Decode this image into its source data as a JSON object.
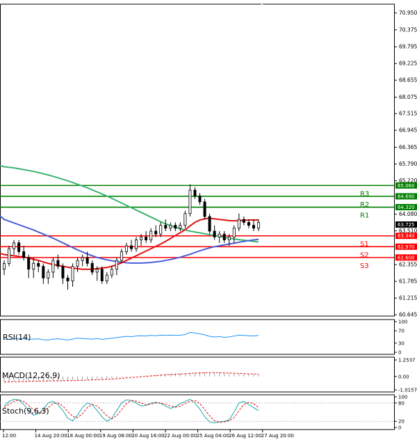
{
  "chart_data": {
    "type": "candlestick",
    "price_axis": {
      "ticks": [
        "70.950",
        "70.375",
        "69.795",
        "69.225",
        "68.655",
        "68.075",
        "67.515",
        "66.945",
        "66.365",
        "65.790",
        "65.220",
        "64.080",
        "63.510",
        "62.355",
        "61.785",
        "61.215",
        "60.645"
      ],
      "tick_values": [
        70.95,
        70.375,
        69.795,
        69.225,
        68.655,
        68.075,
        67.515,
        66.945,
        66.365,
        65.79,
        65.22,
        64.08,
        63.51,
        62.355,
        61.785,
        61.215,
        60.645
      ],
      "range": [
        60.6,
        71.25
      ]
    },
    "time_axis": {
      "labels": [
        "12:00",
        "14 Aug 20:00",
        "18 Aug 00:00",
        "19 Aug 08:00",
        "20 Aug 16:00",
        "22 Aug 00:00",
        "25 Aug 04:00",
        "26 Aug 12:00",
        "27 Aug 20:00"
      ]
    },
    "current_price": {
      "label": "63.725",
      "value": 63.725
    },
    "levels": [
      {
        "name": "R3",
        "label": "65.060",
        "value": 65.06,
        "color": "#008000"
      },
      {
        "name": "R2",
        "label": "64.690",
        "value": 64.69,
        "color": "#008000"
      },
      {
        "name": "R1",
        "label": "64.320",
        "value": 64.32,
        "color": "#008000"
      },
      {
        "name": "S1",
        "label": "63.340",
        "value": 63.34,
        "color": "#ff0000"
      },
      {
        "name": "S2",
        "label": "62.970",
        "value": 62.97,
        "color": "#ff0000"
      },
      {
        "name": "S3",
        "label": "62.600",
        "value": 62.6,
        "color": "#ff0000"
      }
    ],
    "candles": [
      {
        "o": 62.2,
        "h": 62.5,
        "l": 62.0,
        "c": 62.4
      },
      {
        "o": 62.4,
        "h": 63.0,
        "l": 62.3,
        "c": 62.9
      },
      {
        "o": 62.9,
        "h": 63.2,
        "l": 62.7,
        "c": 63.1
      },
      {
        "o": 63.1,
        "h": 63.2,
        "l": 62.7,
        "c": 62.8
      },
      {
        "o": 62.8,
        "h": 63.0,
        "l": 62.5,
        "c": 62.6
      },
      {
        "o": 62.6,
        "h": 62.7,
        "l": 61.9,
        "c": 62.2
      },
      {
        "o": 62.2,
        "h": 62.6,
        "l": 61.9,
        "c": 62.4
      },
      {
        "o": 62.4,
        "h": 62.5,
        "l": 62.1,
        "c": 62.3
      },
      {
        "o": 62.3,
        "h": 62.4,
        "l": 61.7,
        "c": 61.9
      },
      {
        "o": 61.9,
        "h": 62.2,
        "l": 61.7,
        "c": 62.1
      },
      {
        "o": 62.1,
        "h": 62.6,
        "l": 61.9,
        "c": 62.5
      },
      {
        "o": 62.5,
        "h": 62.7,
        "l": 62.2,
        "c": 62.3
      },
      {
        "o": 62.3,
        "h": 62.4,
        "l": 61.7,
        "c": 61.9
      },
      {
        "o": 61.9,
        "h": 62.0,
        "l": 61.5,
        "c": 61.8
      },
      {
        "o": 61.8,
        "h": 62.4,
        "l": 61.6,
        "c": 62.3
      },
      {
        "o": 62.3,
        "h": 62.6,
        "l": 62.1,
        "c": 62.5
      },
      {
        "o": 62.5,
        "h": 62.7,
        "l": 62.3,
        "c": 62.6
      },
      {
        "o": 62.6,
        "h": 62.8,
        "l": 62.3,
        "c": 62.4
      },
      {
        "o": 62.4,
        "h": 62.5,
        "l": 62.0,
        "c": 62.1
      },
      {
        "o": 62.1,
        "h": 62.3,
        "l": 61.8,
        "c": 62.2
      },
      {
        "o": 62.2,
        "h": 62.3,
        "l": 61.7,
        "c": 61.8
      },
      {
        "o": 61.8,
        "h": 62.1,
        "l": 61.7,
        "c": 62.0
      },
      {
        "o": 62.0,
        "h": 62.3,
        "l": 61.9,
        "c": 62.2
      },
      {
        "o": 62.2,
        "h": 62.6,
        "l": 62.0,
        "c": 62.5
      },
      {
        "o": 62.5,
        "h": 62.9,
        "l": 62.4,
        "c": 62.8
      },
      {
        "o": 62.8,
        "h": 63.1,
        "l": 62.7,
        "c": 63.0
      },
      {
        "o": 63.0,
        "h": 63.2,
        "l": 62.8,
        "c": 62.9
      },
      {
        "o": 62.9,
        "h": 63.3,
        "l": 62.8,
        "c": 63.2
      },
      {
        "o": 63.2,
        "h": 63.4,
        "l": 63.0,
        "c": 63.3
      },
      {
        "o": 63.3,
        "h": 63.5,
        "l": 63.1,
        "c": 63.2
      },
      {
        "o": 63.2,
        "h": 63.6,
        "l": 63.1,
        "c": 63.5
      },
      {
        "o": 63.5,
        "h": 63.7,
        "l": 63.3,
        "c": 63.4
      },
      {
        "o": 63.4,
        "h": 63.8,
        "l": 63.3,
        "c": 63.7
      },
      {
        "o": 63.7,
        "h": 63.9,
        "l": 63.5,
        "c": 63.6
      },
      {
        "o": 63.6,
        "h": 63.8,
        "l": 63.5,
        "c": 63.7
      },
      {
        "o": 63.7,
        "h": 63.8,
        "l": 63.5,
        "c": 63.6
      },
      {
        "o": 63.6,
        "h": 63.8,
        "l": 63.5,
        "c": 63.7
      },
      {
        "o": 63.7,
        "h": 64.2,
        "l": 63.6,
        "c": 64.1
      },
      {
        "o": 64.1,
        "h": 65.1,
        "l": 64.0,
        "c": 64.9
      },
      {
        "o": 64.9,
        "h": 65.0,
        "l": 64.6,
        "c": 64.7
      },
      {
        "o": 64.7,
        "h": 64.8,
        "l": 64.4,
        "c": 64.5
      },
      {
        "o": 64.5,
        "h": 64.6,
        "l": 63.9,
        "c": 64.0
      },
      {
        "o": 64.0,
        "h": 64.1,
        "l": 63.4,
        "c": 63.5
      },
      {
        "o": 63.5,
        "h": 63.7,
        "l": 63.2,
        "c": 63.3
      },
      {
        "o": 63.3,
        "h": 63.5,
        "l": 63.1,
        "c": 63.4
      },
      {
        "o": 63.4,
        "h": 63.5,
        "l": 63.1,
        "c": 63.2
      },
      {
        "o": 63.2,
        "h": 63.4,
        "l": 63.0,
        "c": 63.3
      },
      {
        "o": 63.3,
        "h": 63.7,
        "l": 63.1,
        "c": 63.6
      },
      {
        "o": 63.6,
        "h": 64.1,
        "l": 63.5,
        "c": 63.9
      },
      {
        "o": 63.9,
        "h": 64.0,
        "l": 63.7,
        "c": 63.8
      },
      {
        "o": 63.8,
        "h": 63.9,
        "l": 63.6,
        "c": 63.7
      },
      {
        "o": 63.7,
        "h": 63.9,
        "l": 63.5,
        "c": 63.6
      },
      {
        "o": 63.6,
        "h": 63.9,
        "l": 63.5,
        "c": 63.8
      }
    ],
    "ma_red": [
      62.7,
      62.68,
      62.66,
      62.64,
      62.62,
      62.58,
      62.54,
      62.5,
      62.45,
      62.4,
      62.36,
      62.33,
      62.3,
      62.27,
      62.24,
      62.22,
      62.2,
      62.2,
      62.2,
      62.22,
      62.24,
      62.26,
      62.3,
      62.35,
      62.42,
      62.5,
      62.58,
      62.66,
      62.74,
      62.82,
      62.9,
      62.98,
      63.06,
      63.15,
      63.25,
      63.35,
      63.45,
      63.55,
      63.68,
      63.8,
      63.88,
      63.92,
      63.94,
      63.92,
      63.9,
      63.88,
      63.86,
      63.85,
      63.86,
      63.87,
      63.88,
      63.88,
      63.88
    ],
    "ma_blue": [
      63.9,
      63.84,
      63.78,
      63.72,
      63.66,
      63.6,
      63.54,
      63.47,
      63.4,
      63.33,
      63.26,
      63.18,
      63.1,
      63.02,
      62.94,
      62.86,
      62.79,
      62.72,
      62.66,
      62.6,
      62.56,
      62.52,
      62.49,
      62.46,
      62.44,
      62.42,
      62.41,
      62.41,
      62.41,
      62.42,
      62.43,
      62.45,
      62.47,
      62.5,
      62.53,
      62.57,
      62.61,
      62.66,
      62.71,
      62.77,
      62.83,
      62.88,
      62.93,
      62.97,
      63.0,
      63.03,
      63.06,
      63.09,
      63.12,
      63.15,
      63.18,
      63.2,
      63.22
    ],
    "ma_green": [
      65.7,
      65.68,
      65.66,
      65.63,
      65.6,
      65.57,
      65.54,
      65.5,
      65.46,
      65.42,
      65.37,
      65.32,
      65.27,
      65.22,
      65.16,
      65.1,
      65.04,
      64.98,
      64.91,
      64.84,
      64.77,
      64.7,
      64.62,
      64.54,
      64.46,
      64.38,
      64.3,
      64.22,
      64.14,
      64.06,
      63.98,
      63.9,
      63.82,
      63.75,
      63.69,
      63.63,
      63.58,
      63.54,
      63.5,
      63.47,
      63.44,
      63.41,
      63.38,
      63.35,
      63.32,
      63.29,
      63.26,
      63.23,
      63.21,
      63.19,
      63.17,
      63.15,
      63.13
    ],
    "rsi": {
      "label": "RSI(14)",
      "ticks": [
        "100",
        "70",
        "30",
        "0"
      ],
      "tick_values": [
        100,
        70,
        30,
        0
      ],
      "values": [
        43,
        42,
        44,
        45,
        44,
        42,
        43,
        44,
        41,
        40,
        43,
        44,
        42,
        40,
        43,
        46,
        45,
        44,
        43,
        45,
        42,
        44,
        46,
        48,
        50,
        52,
        51,
        53,
        54,
        53,
        55,
        54,
        56,
        55,
        56,
        55,
        56,
        58,
        65,
        63,
        60,
        57,
        52,
        50,
        51,
        49,
        50,
        53,
        56,
        55,
        54,
        53,
        55
      ]
    },
    "macd": {
      "label": "MACD(12,26,9)",
      "ticks": [
        "1.2537",
        "0.00",
        "-1.0157"
      ],
      "tick_values": [
        1.2537,
        0,
        -1.0157
      ],
      "hist": [
        -0.4,
        -0.38,
        -0.36,
        -0.35,
        -0.34,
        -0.34,
        -0.33,
        -0.33,
        -0.33,
        -0.33,
        -0.32,
        -0.32,
        -0.32,
        -0.31,
        -0.3,
        -0.29,
        -0.27,
        -0.25,
        -0.23,
        -0.21,
        -0.2,
        -0.18,
        -0.15,
        -0.12,
        -0.09,
        -0.06,
        -0.03,
        0.0,
        0.03,
        0.06,
        0.09,
        0.12,
        0.15,
        0.17,
        0.19,
        0.21,
        0.23,
        0.25,
        0.28,
        0.3,
        0.31,
        0.31,
        0.3,
        0.28,
        0.26,
        0.24,
        0.22,
        0.2,
        0.19,
        0.18,
        0.17,
        0.16,
        0.15
      ],
      "signal": [
        -0.42,
        -0.41,
        -0.4,
        -0.39,
        -0.38,
        -0.37,
        -0.36,
        -0.35,
        -0.34,
        -0.34,
        -0.33,
        -0.33,
        -0.32,
        -0.32,
        -0.31,
        -0.3,
        -0.29,
        -0.28,
        -0.26,
        -0.25,
        -0.23,
        -0.21,
        -0.19,
        -0.17,
        -0.14,
        -0.11,
        -0.08,
        -0.05,
        -0.02,
        0.01,
        0.04,
        0.07,
        0.1,
        0.13,
        0.15,
        0.17,
        0.19,
        0.21,
        0.23,
        0.25,
        0.27,
        0.28,
        0.29,
        0.29,
        0.28,
        0.27,
        0.26,
        0.25,
        0.23,
        0.22,
        0.2,
        0.19,
        0.18
      ]
    },
    "stoch": {
      "label": "Stoch(9,6,3)",
      "ticks": [
        "100",
        "80",
        "20",
        "0"
      ],
      "tick_values": [
        100,
        80,
        20,
        0
      ],
      "k": [
        70,
        85,
        92,
        90,
        75,
        55,
        40,
        45,
        60,
        80,
        85,
        75,
        55,
        30,
        22,
        40,
        65,
        80,
        75,
        55,
        35,
        20,
        30,
        55,
        80,
        90,
        88,
        80,
        70,
        72,
        80,
        82,
        78,
        70,
        62,
        68,
        78,
        85,
        92,
        80,
        60,
        35,
        18,
        15,
        18,
        20,
        25,
        50,
        80,
        85,
        75,
        65,
        55
      ],
      "d": [
        65,
        75,
        85,
        90,
        85,
        72,
        58,
        48,
        52,
        65,
        78,
        80,
        70,
        52,
        36,
        32,
        45,
        65,
        75,
        70,
        55,
        38,
        28,
        38,
        58,
        78,
        88,
        86,
        80,
        74,
        76,
        80,
        80,
        76,
        70,
        66,
        70,
        78,
        86,
        88,
        78,
        58,
        38,
        22,
        17,
        18,
        22,
        32,
        55,
        75,
        82,
        78,
        65
      ]
    }
  }
}
